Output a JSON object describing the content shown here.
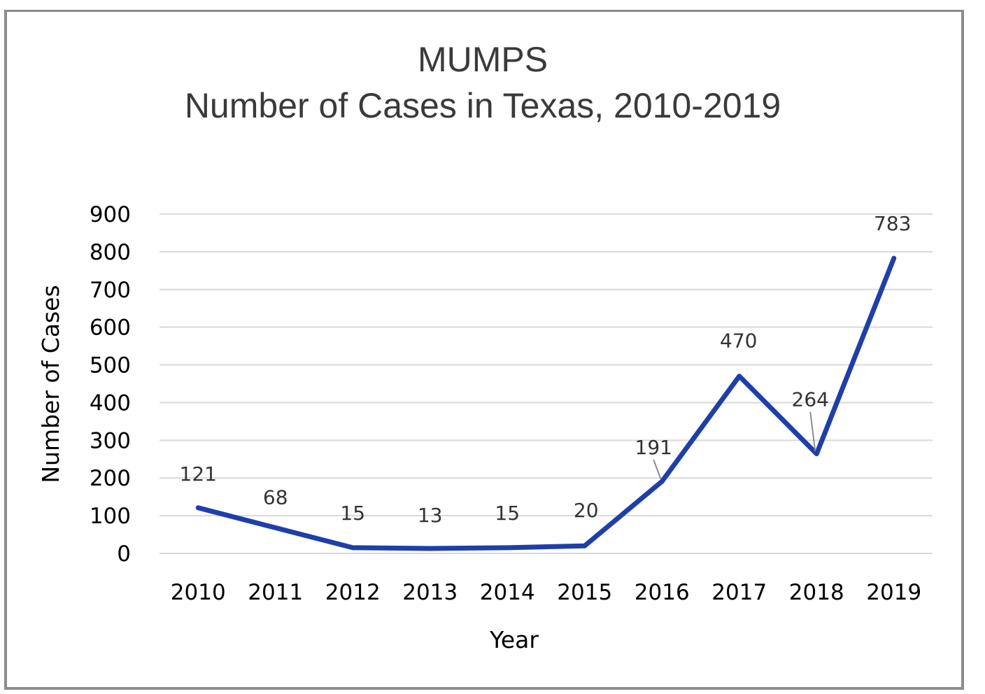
{
  "chart_data": {
    "type": "line",
    "title": "MUMPS",
    "subtitle": "Number of Cases in Texas, 2010-2019",
    "xlabel": "Year",
    "ylabel": "Number of Cases",
    "categories": [
      "2010",
      "2011",
      "2012",
      "2013",
      "2014",
      "2015",
      "2016",
      "2017",
      "2018",
      "2019"
    ],
    "series": [
      {
        "name": "Number of Cases",
        "values": [
          121,
          68,
          15,
          13,
          15,
          20,
          191,
          470,
          264,
          783
        ],
        "color": "#1f3fa8"
      }
    ],
    "ylim": [
      0,
      900
    ],
    "yticks": [
      0,
      100,
      200,
      300,
      400,
      500,
      600,
      700,
      800,
      900
    ],
    "data_labels": [
      "121",
      "68",
      "15",
      "13",
      "15",
      "20",
      "191",
      "470",
      "264",
      "783"
    ],
    "grid": true,
    "legend": "none"
  }
}
